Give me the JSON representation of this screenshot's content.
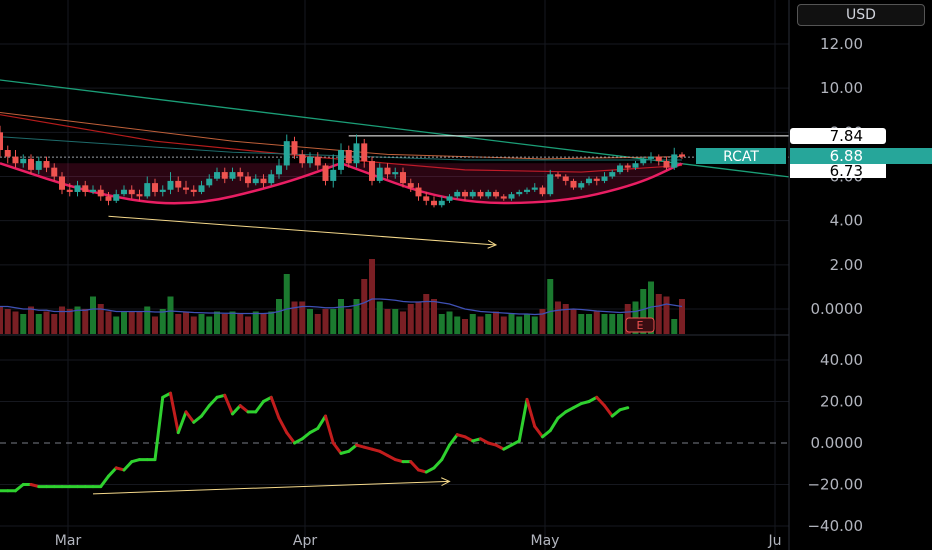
{
  "currency": "USD",
  "x_axis": {
    "months": [
      "Mar",
      "Apr",
      "May",
      "Ju"
    ]
  },
  "price_axis": {
    "ticks": [
      "12.00",
      "10.00",
      "8.00",
      "6.00",
      "4.00",
      "2.00",
      "0.0000"
    ],
    "range": [
      -0.8,
      13.2
    ]
  },
  "osc_axis": {
    "ticks": [
      "40.00",
      "20.00",
      "0.0000",
      "−20.00",
      "−40.00"
    ],
    "range": [
      -40,
      40
    ]
  },
  "price_labels": {
    "high_line": "7.84",
    "symbol": "RCAT",
    "last": "6.88",
    "prev": "6.73"
  },
  "earnings_marker": "E",
  "colors": {
    "up": "#26a69a",
    "down": "#ef5350",
    "vol_up": "#1b7a2f",
    "vol_down": "#7a1f24",
    "cup": "#e91e63",
    "trendline": "#1b9e77",
    "ma": "#3f51b5",
    "osc_up": "#2fd12f",
    "osc_down": "#c21d1d",
    "arrow": "#f5d98b"
  },
  "chart_data": [
    {
      "type": "candlestick",
      "ylim": [
        -0.8,
        13.2
      ],
      "candles": [
        [
          8.0,
          7.2,
          8.3,
          6.9
        ],
        [
          7.2,
          6.9,
          7.4,
          6.6
        ],
        [
          6.9,
          6.6,
          7.2,
          6.4
        ],
        [
          6.6,
          6.8,
          7.0,
          6.4
        ],
        [
          6.8,
          6.3,
          7.0,
          6.1
        ],
        [
          6.3,
          6.7,
          6.9,
          6.1
        ],
        [
          6.7,
          6.4,
          6.9,
          6.2
        ],
        [
          6.4,
          6.0,
          6.6,
          5.8
        ],
        [
          6.0,
          5.4,
          6.2,
          5.2
        ],
        [
          5.4,
          5.3,
          5.7,
          5.1
        ],
        [
          5.3,
          5.6,
          5.8,
          5.1
        ],
        [
          5.6,
          5.3,
          5.8,
          5.1
        ],
        [
          5.3,
          5.4,
          5.6,
          5.2
        ],
        [
          5.4,
          5.1,
          5.6,
          4.9
        ],
        [
          5.1,
          4.9,
          5.3,
          4.7
        ],
        [
          4.9,
          5.2,
          5.4,
          4.8
        ],
        [
          5.2,
          5.4,
          5.6,
          5.1
        ],
        [
          5.4,
          5.2,
          5.6,
          5.0
        ],
        [
          5.2,
          5.1,
          5.4,
          4.9
        ],
        [
          5.1,
          5.7,
          6.0,
          5.0
        ],
        [
          5.7,
          5.3,
          5.9,
          5.1
        ],
        [
          5.3,
          5.4,
          5.6,
          5.1
        ],
        [
          5.4,
          5.8,
          6.2,
          5.2
        ],
        [
          5.8,
          5.5,
          6.0,
          5.3
        ],
        [
          5.5,
          5.4,
          5.8,
          5.2
        ],
        [
          5.4,
          5.3,
          5.6,
          5.1
        ],
        [
          5.3,
          5.6,
          5.8,
          5.2
        ],
        [
          5.6,
          5.9,
          6.1,
          5.5
        ],
        [
          5.9,
          6.2,
          6.4,
          5.8
        ],
        [
          6.2,
          5.9,
          6.4,
          5.7
        ],
        [
          5.9,
          6.2,
          6.4,
          5.8
        ],
        [
          6.2,
          6.0,
          6.4,
          5.8
        ],
        [
          6.0,
          5.7,
          6.2,
          5.5
        ],
        [
          5.7,
          5.9,
          6.1,
          5.6
        ],
        [
          5.9,
          5.7,
          6.1,
          5.5
        ],
        [
          5.7,
          6.1,
          6.3,
          5.6
        ],
        [
          6.1,
          6.5,
          6.8,
          5.9
        ],
        [
          6.5,
          7.6,
          7.9,
          6.3
        ],
        [
          7.6,
          7.0,
          7.8,
          6.8
        ],
        [
          7.0,
          6.6,
          7.2,
          6.4
        ],
        [
          6.6,
          6.9,
          7.1,
          6.4
        ],
        [
          6.9,
          6.5,
          7.1,
          6.3
        ],
        [
          6.5,
          5.8,
          6.6,
          5.6
        ],
        [
          5.8,
          6.3,
          7.0,
          5.5
        ],
        [
          6.3,
          7.2,
          7.5,
          6.1
        ],
        [
          7.2,
          6.6,
          7.4,
          6.4
        ],
        [
          6.6,
          7.5,
          7.9,
          6.4
        ],
        [
          7.5,
          6.7,
          7.7,
          6.4
        ],
        [
          6.7,
          5.8,
          6.9,
          5.6
        ],
        [
          5.8,
          6.4,
          6.6,
          5.7
        ],
        [
          6.4,
          6.1,
          6.6,
          5.9
        ],
        [
          6.1,
          6.2,
          6.4,
          5.9
        ],
        [
          6.2,
          5.7,
          6.4,
          5.5
        ],
        [
          5.7,
          5.5,
          5.9,
          5.3
        ],
        [
          5.5,
          5.1,
          5.7,
          4.9
        ],
        [
          5.1,
          4.9,
          5.3,
          4.7
        ],
        [
          4.9,
          4.7,
          5.1,
          4.6
        ],
        [
          4.7,
          4.9,
          5.1,
          4.6
        ],
        [
          4.9,
          5.1,
          5.2,
          4.8
        ],
        [
          5.1,
          5.3,
          5.4,
          5.0
        ],
        [
          5.3,
          5.1,
          5.4,
          4.9
        ],
        [
          5.1,
          5.3,
          5.4,
          5.0
        ],
        [
          5.3,
          5.1,
          5.4,
          5.0
        ],
        [
          5.1,
          5.3,
          5.4,
          5.0
        ],
        [
          5.3,
          5.1,
          5.4,
          5.0
        ],
        [
          5.1,
          5.0,
          5.2,
          4.9
        ],
        [
          5.0,
          5.2,
          5.3,
          4.9
        ],
        [
          5.2,
          5.3,
          5.4,
          5.1
        ],
        [
          5.3,
          5.4,
          5.5,
          5.2
        ],
        [
          5.4,
          5.5,
          5.7,
          5.3
        ],
        [
          5.5,
          5.2,
          5.6,
          5.1
        ],
        [
          5.2,
          6.1,
          6.3,
          5.1
        ],
        [
          6.1,
          6.0,
          6.2,
          5.9
        ],
        [
          6.0,
          5.8,
          6.1,
          5.6
        ],
        [
          5.8,
          5.5,
          5.9,
          5.4
        ],
        [
          5.5,
          5.7,
          5.8,
          5.4
        ],
        [
          5.7,
          5.9,
          6.0,
          5.6
        ],
        [
          5.9,
          5.8,
          6.0,
          5.6
        ],
        [
          5.8,
          6.0,
          6.2,
          5.7
        ],
        [
          6.0,
          6.2,
          6.3,
          5.9
        ],
        [
          6.2,
          6.5,
          6.6,
          6.1
        ],
        [
          6.5,
          6.4,
          6.6,
          6.2
        ],
        [
          6.4,
          6.6,
          6.7,
          6.3
        ],
        [
          6.6,
          6.8,
          6.9,
          6.5
        ],
        [
          6.8,
          6.9,
          7.1,
          6.6
        ],
        [
          6.9,
          6.7,
          7.0,
          6.5
        ],
        [
          6.7,
          6.4,
          6.9,
          6.3
        ],
        [
          6.4,
          7.0,
          7.3,
          6.3
        ],
        [
          7.0,
          6.9,
          7.1,
          6.8
        ]
      ],
      "volume": [
        1.1,
        1.0,
        0.9,
        0.8,
        1.1,
        0.8,
        0.9,
        0.8,
        1.1,
        1.0,
        1.1,
        1.0,
        1.5,
        1.2,
        0.9,
        0.7,
        0.9,
        0.9,
        0.9,
        1.1,
        0.7,
        1.0,
        1.5,
        0.8,
        0.9,
        0.7,
        0.8,
        0.7,
        0.9,
        0.8,
        0.9,
        0.8,
        0.7,
        0.9,
        0.8,
        0.9,
        1.4,
        2.4,
        1.3,
        1.3,
        1.0,
        0.8,
        1.0,
        1.0,
        1.4,
        1.0,
        1.4,
        2.2,
        3.0,
        1.3,
        1.0,
        1.0,
        0.9,
        1.2,
        1.3,
        1.6,
        1.4,
        0.8,
        0.9,
        0.7,
        0.6,
        0.8,
        0.7,
        0.8,
        0.9,
        0.7,
        0.8,
        0.7,
        0.8,
        0.7,
        1.0,
        2.2,
        1.3,
        1.2,
        1.0,
        0.8,
        0.8,
        0.9,
        0.8,
        0.8,
        0.8,
        1.2,
        1.3,
        1.8,
        2.1,
        1.6,
        1.5,
        0.6,
        1.4
      ],
      "volume_ma": [
        1.1,
        1.1,
        1.05,
        1.0,
        1.0,
        0.95,
        0.95,
        0.9,
        0.9,
        0.9,
        0.95,
        0.95,
        1.0,
        1.0,
        0.95,
        0.9,
        0.9,
        0.9,
        0.9,
        0.9,
        0.88,
        0.88,
        0.92,
        0.9,
        0.88,
        0.86,
        0.85,
        0.84,
        0.84,
        0.83,
        0.83,
        0.82,
        0.82,
        0.82,
        0.82,
        0.84,
        0.9,
        1.0,
        1.05,
        1.1,
        1.1,
        1.08,
        1.05,
        1.05,
        1.08,
        1.1,
        1.15,
        1.25,
        1.4,
        1.4,
        1.38,
        1.35,
        1.3,
        1.28,
        1.28,
        1.3,
        1.3,
        1.25,
        1.2,
        1.1,
        1.0,
        0.95,
        0.9,
        0.88,
        0.86,
        0.84,
        0.82,
        0.8,
        0.8,
        0.78,
        0.8,
        0.9,
        0.95,
        0.98,
        1.0,
        0.98,
        0.95,
        0.92,
        0.9,
        0.88,
        0.86,
        0.88,
        0.9,
        0.98,
        1.08,
        1.12,
        1.2,
        1.15,
        1.1
      ],
      "ma_red": [
        [
          0,
          8.8
        ],
        [
          20,
          7.6
        ],
        [
          40,
          6.9
        ],
        [
          60,
          6.3
        ],
        [
          75,
          6.2
        ],
        [
          88,
          6.5
        ]
      ],
      "ma_orange": [
        [
          0,
          8.9
        ],
        [
          30,
          7.6
        ],
        [
          50,
          7.0
        ],
        [
          70,
          6.8
        ],
        [
          88,
          6.9
        ]
      ],
      "ma_blue": [
        [
          0,
          7.8
        ],
        [
          30,
          7.1
        ],
        [
          60,
          6.75
        ],
        [
          88,
          6.75
        ]
      ],
      "trendline": [
        [
          -3,
          10.5
        ],
        [
          120,
          5.2
        ]
      ],
      "cups": [
        [
          [
            0,
            6.6
          ],
          [
            12,
            5.2
          ],
          [
            24,
            4.6
          ],
          [
            36,
            5.6
          ],
          [
            44,
            6.6
          ]
        ],
        [
          [
            44,
            6.6
          ],
          [
            58,
            4.8
          ],
          [
            72,
            4.8
          ],
          [
            82,
            5.6
          ],
          [
            88,
            6.6
          ]
        ]
      ],
      "arrow": [
        [
          14,
          4.2
        ],
        [
          64,
          2.9
        ]
      ],
      "high_line": 7.84,
      "last": 6.88,
      "prev": 6.73
    },
    {
      "type": "line",
      "ylim": [
        -40,
        40
      ],
      "values": [
        -23,
        -23,
        -23,
        -20,
        -20,
        -21,
        -21,
        -21,
        -21,
        -21,
        -21,
        -21,
        -21,
        -21,
        -16,
        -12,
        -13,
        -9,
        -8,
        -8,
        -8,
        22,
        24,
        5,
        15,
        10,
        13,
        18,
        22,
        23,
        14,
        18,
        15,
        15,
        20,
        22,
        12,
        5,
        0,
        2,
        5,
        7,
        13,
        0,
        -5,
        -4,
        -1,
        -2,
        -3,
        -4,
        -6,
        -8,
        -9,
        -9,
        -13,
        -14,
        -12,
        -8,
        -1,
        4,
        3,
        1,
        2,
        0,
        -1,
        -3,
        -1,
        1,
        21,
        8,
        3,
        6,
        12,
        15,
        17,
        19,
        20,
        22,
        18,
        13,
        16,
        17
      ],
      "arrow": [
        [
          12,
          -24.5
        ],
        [
          58,
          -18.5
        ]
      ],
      "zero_line": 0
    }
  ]
}
